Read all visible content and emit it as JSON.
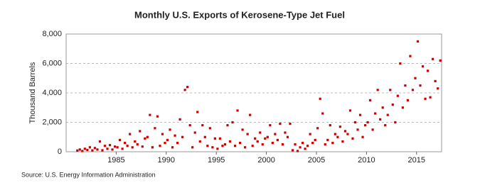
{
  "chart_data": {
    "type": "scatter",
    "title": "Monthly U.S. Exports of Kerosene-Type Jet Fuel",
    "y_label": "Thousand Barrels",
    "source": "Source: U.S. Energy Information Administration",
    "xlim": [
      1980,
      2017.5
    ],
    "xticks": [
      1985,
      1990,
      1995,
      2000,
      2005,
      2010,
      2015
    ],
    "ylim": [
      0,
      8000
    ],
    "yticks": [
      0,
      {
        "value": 2000,
        "label": "2,000"
      },
      {
        "value": 4000,
        "label": "4,000"
      },
      {
        "value": 6000,
        "label": "6,000"
      },
      {
        "value": 8000,
        "label": "8,000"
      }
    ],
    "grid": true,
    "color": "#cc0000",
    "x": [
      1981.12,
      1981.37,
      1981.62,
      1981.87,
      1982.12,
      1982.37,
      1982.62,
      1982.87,
      1983.12,
      1983.37,
      1983.62,
      1983.87,
      1984.12,
      1984.37,
      1984.62,
      1984.87,
      1985.12,
      1985.37,
      1985.62,
      1985.87,
      1986.12,
      1986.37,
      1986.62,
      1986.87,
      1987.12,
      1987.37,
      1987.62,
      1987.87,
      1988.12,
      1988.37,
      1988.62,
      1988.87,
      1989.12,
      1989.37,
      1989.62,
      1989.87,
      1990.12,
      1990.37,
      1990.62,
      1990.87,
      1991.12,
      1991.37,
      1991.62,
      1991.87,
      1992.12,
      1992.37,
      1992.62,
      1992.87,
      1993.12,
      1993.37,
      1993.62,
      1993.87,
      1994.12,
      1994.37,
      1994.62,
      1994.87,
      1995.12,
      1995.37,
      1995.62,
      1995.87,
      1996.12,
      1996.37,
      1996.62,
      1996.87,
      1997.12,
      1997.37,
      1997.62,
      1997.87,
      1998.12,
      1998.37,
      1998.62,
      1998.87,
      1999.12,
      1999.37,
      1999.62,
      1999.87,
      2000.12,
      2000.37,
      2000.62,
      2000.87,
      2001.12,
      2001.37,
      2001.62,
      2001.87,
      2002.12,
      2002.37,
      2002.62,
      2002.87,
      2003.12,
      2003.37,
      2003.62,
      2003.87,
      2004.12,
      2004.37,
      2004.62,
      2004.87,
      2005.12,
      2005.37,
      2005.62,
      2005.87,
      2006.12,
      2006.37,
      2006.62,
      2006.87,
      2007.12,
      2007.37,
      2007.62,
      2007.87,
      2008.12,
      2008.37,
      2008.62,
      2008.87,
      2009.12,
      2009.37,
      2009.62,
      2009.87,
      2010.12,
      2010.37,
      2010.62,
      2010.87,
      2011.12,
      2011.37,
      2011.62,
      2011.87,
      2012.12,
      2012.37,
      2012.62,
      2012.87,
      2013.12,
      2013.37,
      2013.62,
      2013.87,
      2014.12,
      2014.37,
      2014.62,
      2014.87,
      2015.12,
      2015.37,
      2015.62,
      2015.87,
      2016.12,
      2016.37,
      2016.62,
      2016.87,
      2017.12,
      2017.37
    ],
    "values": [
      80,
      150,
      50,
      200,
      120,
      300,
      90,
      250,
      150,
      700,
      100,
      400,
      200,
      450,
      150,
      350,
      300,
      800,
      200,
      600,
      400,
      1200,
      300,
      700,
      500,
      1400,
      350,
      900,
      1000,
      2500,
      300,
      1600,
      2400,
      400,
      1200,
      600,
      800,
      1500,
      300,
      1100,
      600,
      2200,
      1000,
      4200,
      4400,
      1800,
      300,
      1300,
      2700,
      700,
      1800,
      1000,
      400,
      1600,
      300,
      900,
      200,
      900,
      400,
      500,
      1800,
      700,
      2000,
      400,
      2800,
      600,
      1500,
      300,
      1200,
      2500,
      400,
      900,
      700,
      1300,
      500,
      900,
      1000,
      1800,
      600,
      1200,
      800,
      1900,
      500,
      1300,
      1000,
      1900,
      100,
      500,
      50,
      300,
      600,
      200,
      400,
      1200,
      600,
      800,
      1600,
      3600,
      2600,
      500,
      800,
      1800,
      600,
      1200,
      1000,
      1700,
      700,
      1400,
      1200,
      2800,
      900,
      2000,
      1500,
      2500,
      1000,
      1800,
      2000,
      3500,
      1500,
      2600,
      4200,
      2200,
      3000,
      1800,
      2500,
      4200,
      3200,
      2000,
      3800,
      6000,
      3000,
      4500,
      3500,
      6500,
      4200,
      5000,
      7500,
      4500,
      5800,
      3600,
      5500,
      3700,
      6300,
      4800,
      4300,
      6200
    ]
  }
}
